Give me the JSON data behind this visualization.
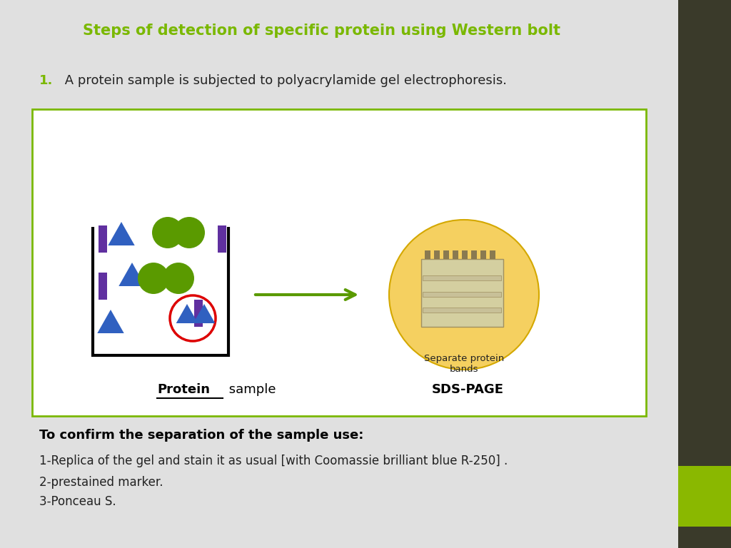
{
  "title": "Steps of detection of specific protein using Western bolt",
  "title_color": "#7ab800",
  "title_fontsize": 15,
  "step1_number": "1.",
  "step1_number_color": "#7ab800",
  "step1_text": " A protein sample is subjected to polyacrylamide gel electrophoresis.",
  "step1_fontsize": 13,
  "box_border_color": "#7ab800",
  "protein_label_bold": "Protein",
  "protein_label_rest": " sample",
  "sds_label": "SDS-PAGE",
  "separate_label": "Separate protein\nbands",
  "confirm_title": "To confirm the separation of the sample use:",
  "confirm_lines": [
    "1-Replica of the gel and stain it as usual [with Coomassie brilliant blue R-250] .",
    "2-prestained marker.",
    "3-Ponceau S."
  ],
  "right_panel_color": "#3a3a2a",
  "green_rect_color": "#8ab800",
  "purple_color": "#6030a0",
  "blue_color": "#3060c0",
  "olive_color": "#5a9a00",
  "arrow_color": "#5a9a00",
  "red_circle_color": "#dd0000",
  "gel_bg_color": "#d4cfa0",
  "sds_circle_fill": "#f5d060",
  "sds_circle_edge": "#d4a800"
}
